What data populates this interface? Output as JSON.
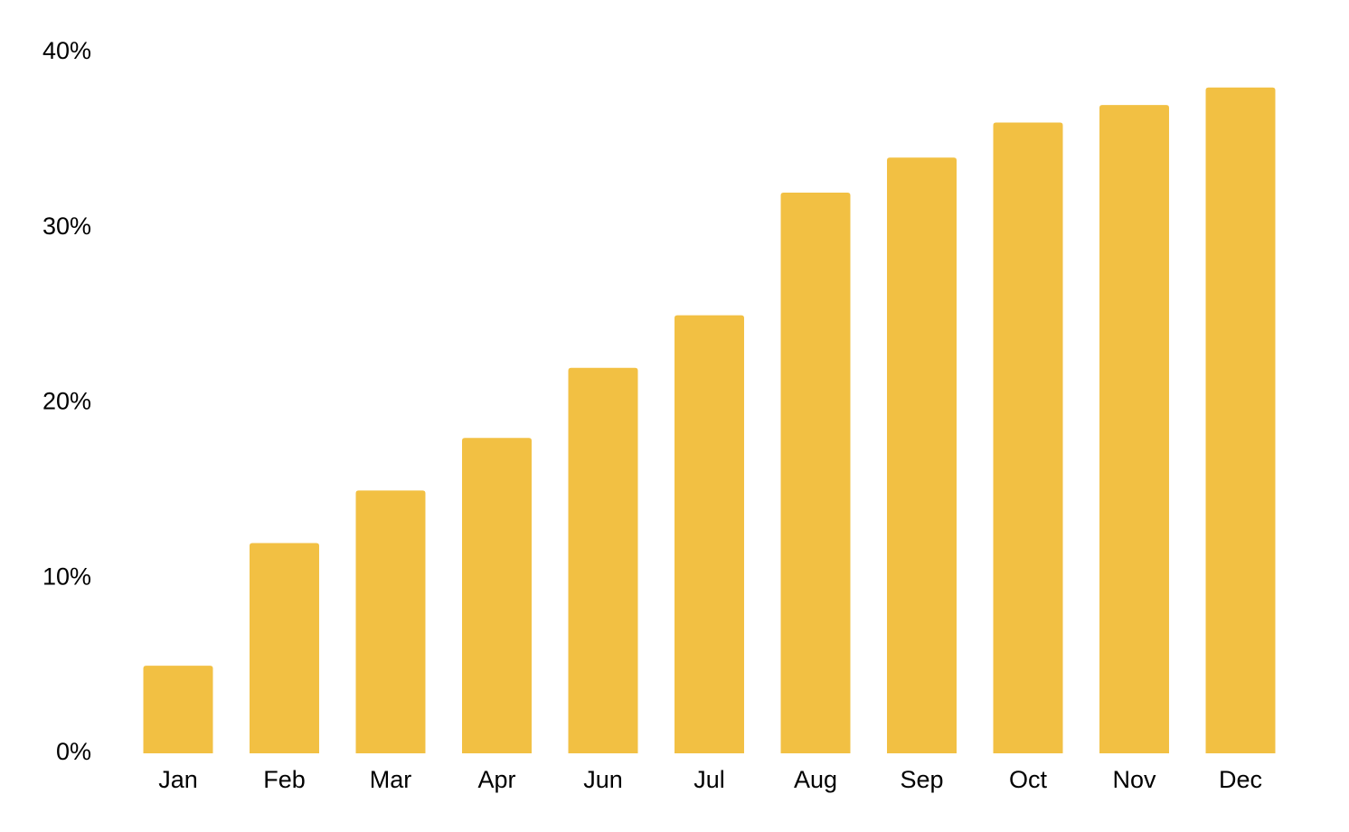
{
  "chart_data": {
    "type": "bar",
    "categories": [
      "Jan",
      "Feb",
      "Mar",
      "Apr",
      "Jun",
      "Jul",
      "Aug",
      "Sep",
      "Oct",
      "Nov",
      "Dec"
    ],
    "values": [
      5,
      12,
      15,
      18,
      22,
      25,
      32,
      34,
      36,
      37,
      38
    ],
    "color": "#f2c043",
    "ylim": [
      0,
      40
    ],
    "yticks": [
      {
        "value": 0,
        "label": "0%"
      },
      {
        "value": 10,
        "label": "10%"
      },
      {
        "value": 20,
        "label": "20%"
      },
      {
        "value": 30,
        "label": "30%"
      },
      {
        "value": 40,
        "label": "40%"
      }
    ],
    "grid": false
  }
}
